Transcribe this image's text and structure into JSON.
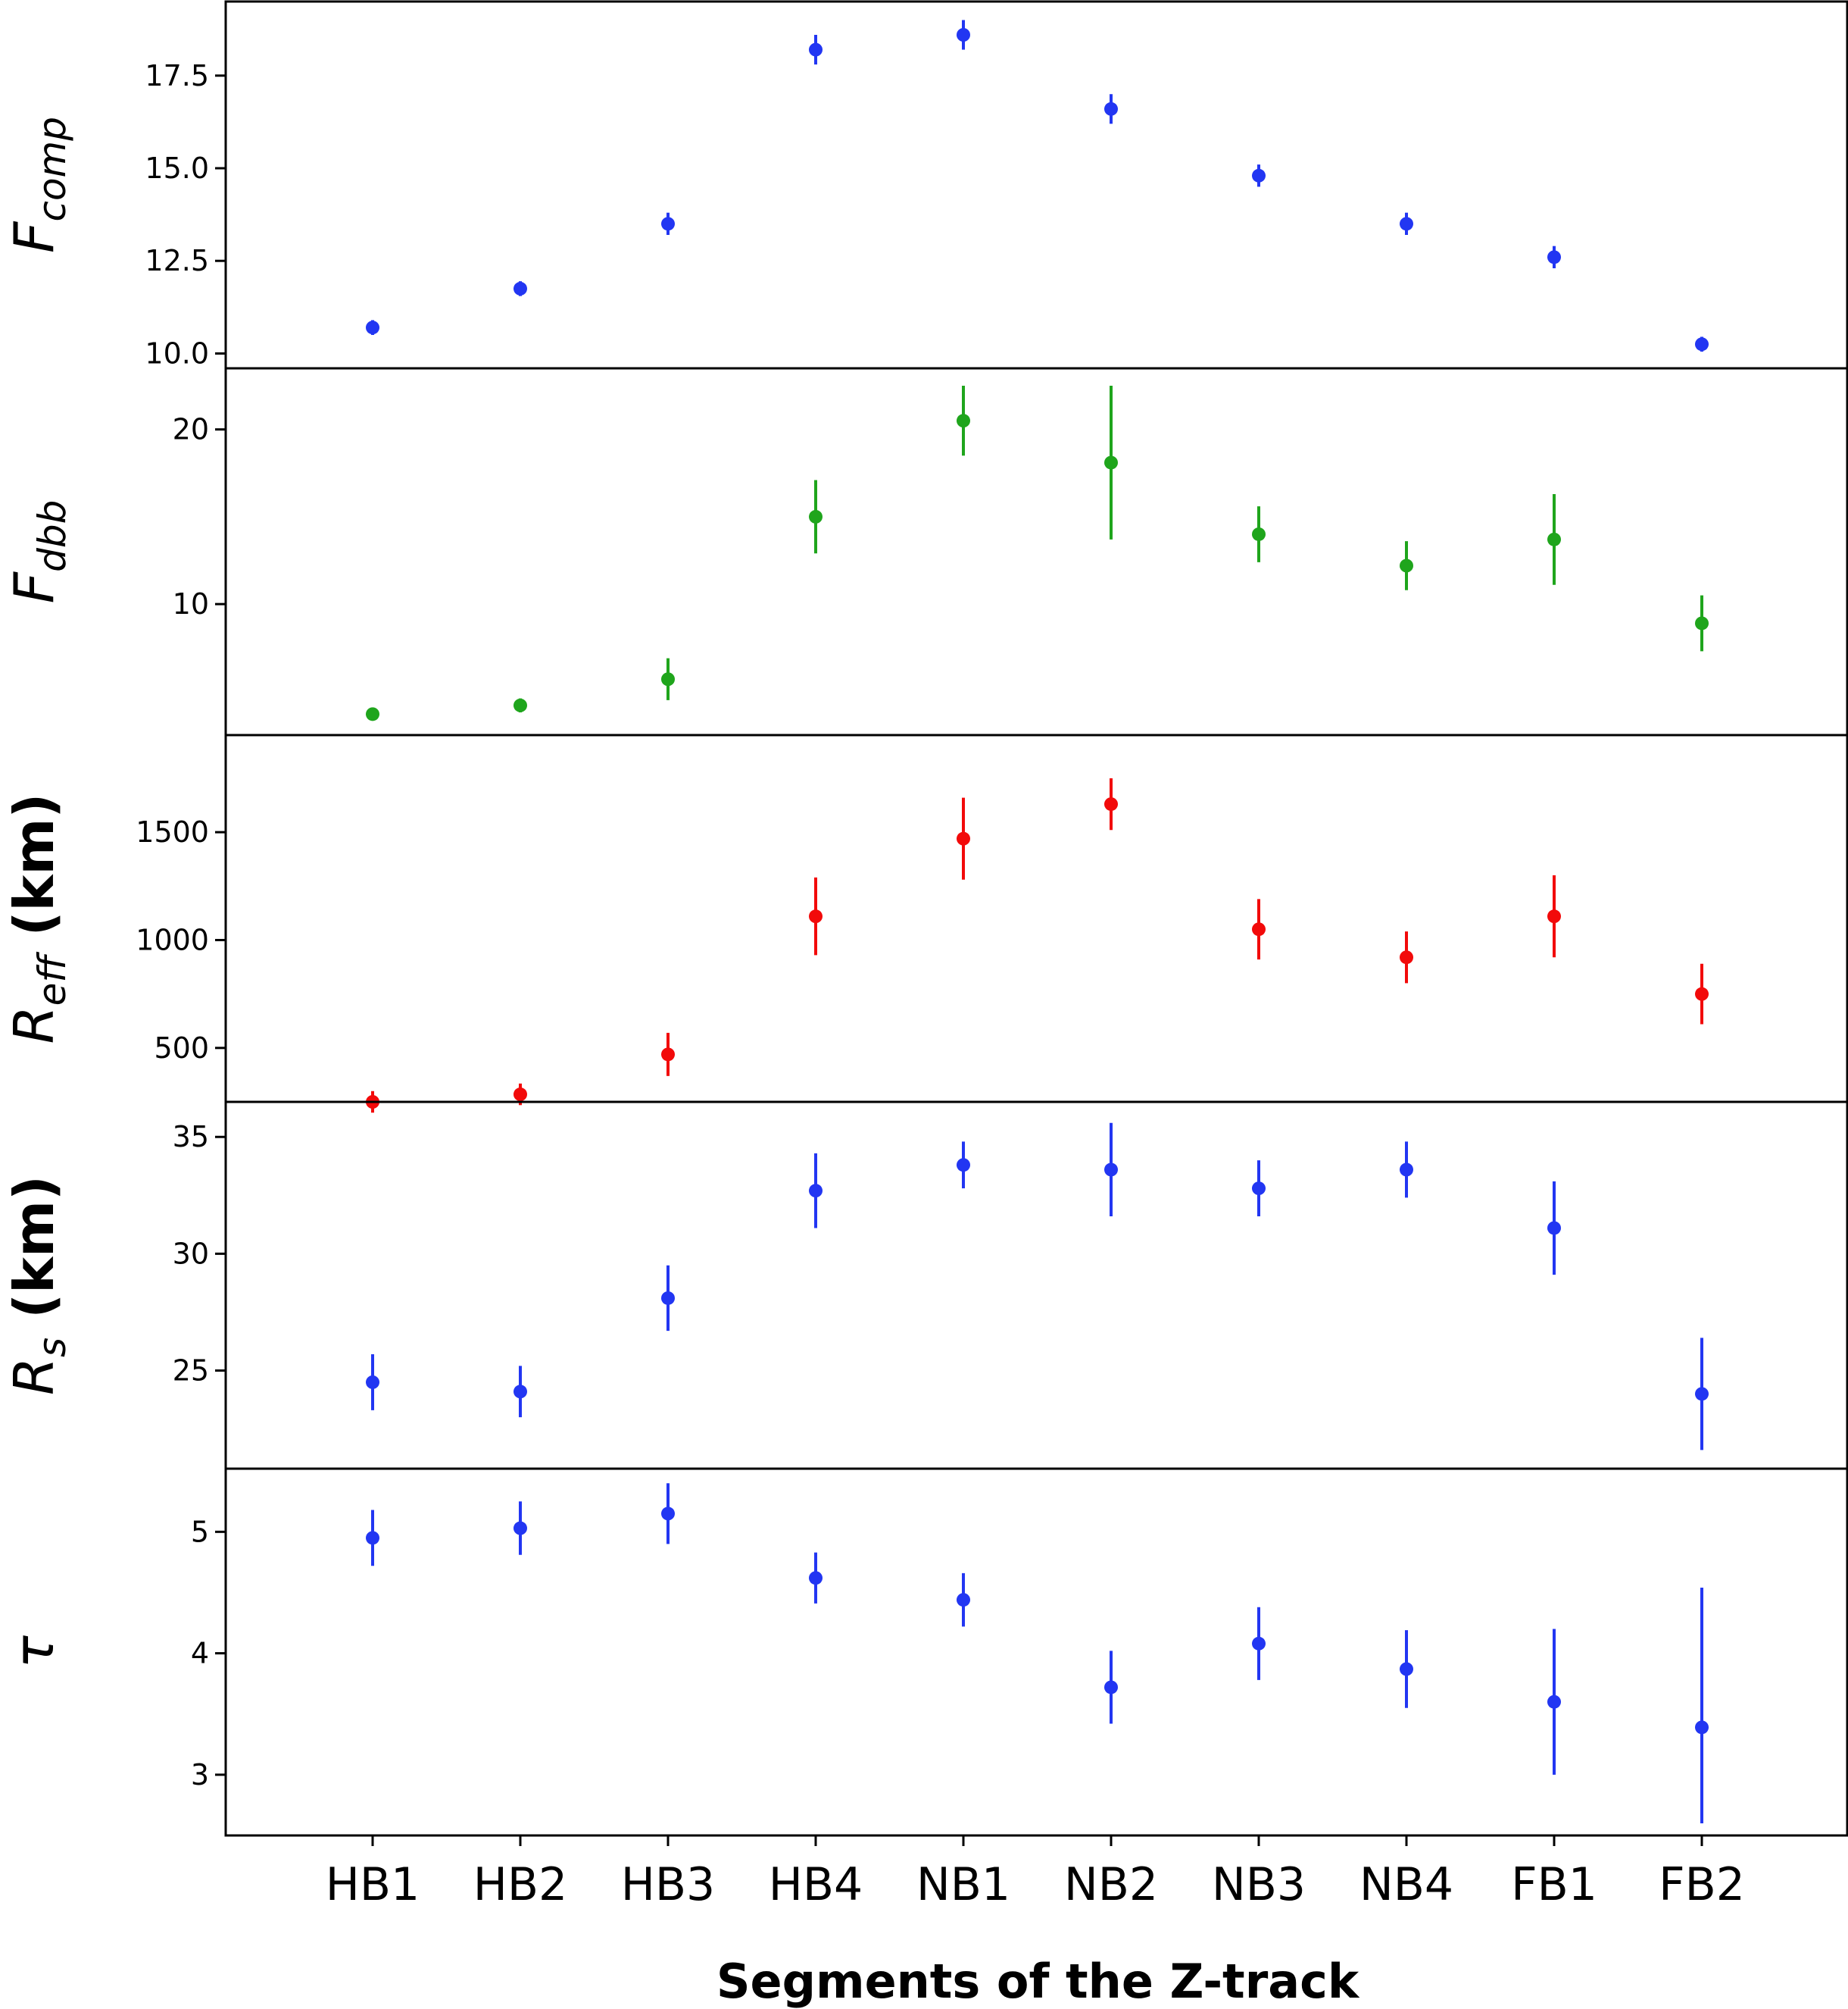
{
  "chart_data": {
    "type": "scatter",
    "categories": [
      "HB1",
      "HB2",
      "HB3",
      "HB4",
      "NB1",
      "NB2",
      "NB3",
      "NB4",
      "FB1",
      "FB2"
    ],
    "xlabel": "Segments of the Z-track",
    "panels": [
      {
        "name": "fcomp",
        "ylabel": {
          "main": "F",
          "sub": "comp",
          "unit": ""
        },
        "color": "#2236f2",
        "ylim": [
          9.6,
          19.5
        ],
        "ticks": [
          10.0,
          12.5,
          15.0,
          17.5
        ],
        "tick_labels": [
          "10.0",
          "12.5",
          "15.0",
          "17.5"
        ],
        "values": [
          10.7,
          11.75,
          13.5,
          18.2,
          18.6,
          16.6,
          14.8,
          13.5,
          12.6,
          10.25
        ],
        "err_low": [
          0.2,
          0.2,
          0.3,
          0.4,
          0.4,
          0.4,
          0.3,
          0.3,
          0.3,
          0.2
        ],
        "err_high": [
          0.2,
          0.2,
          0.3,
          0.4,
          0.4,
          0.4,
          0.3,
          0.3,
          0.3,
          0.2
        ]
      },
      {
        "name": "fdbb",
        "ylabel": {
          "main": "F",
          "sub": "dbb",
          "unit": ""
        },
        "color": "#1fa51c",
        "ylim": [
          2.5,
          23.5
        ],
        "ticks": [
          10,
          20
        ],
        "tick_labels": [
          "10",
          "20"
        ],
        "values": [
          3.7,
          4.2,
          5.7,
          15.0,
          20.5,
          18.1,
          14.0,
          12.2,
          13.7,
          8.9
        ],
        "err_low": [
          0.3,
          0.4,
          1.2,
          2.1,
          2.0,
          4.4,
          1.6,
          1.4,
          2.6,
          1.6
        ],
        "err_high": [
          0.3,
          0.4,
          1.2,
          2.1,
          2.0,
          4.4,
          1.6,
          1.4,
          2.6,
          1.6
        ]
      },
      {
        "name": "reff",
        "ylabel": {
          "main": "R",
          "sub": "eff",
          "unit": " (km)"
        },
        "color": "#f20a0a",
        "ylim": [
          250,
          1950
        ],
        "ticks": [
          500,
          1000,
          1500
        ],
        "tick_labels": [
          "500",
          "1000",
          "1500"
        ],
        "values": [
          250,
          285,
          470,
          1110,
          1470,
          1630,
          1050,
          920,
          1110,
          750
        ],
        "err_low": [
          50,
          50,
          100,
          180,
          190,
          120,
          140,
          120,
          190,
          140
        ],
        "err_high": [
          50,
          50,
          100,
          180,
          190,
          120,
          140,
          120,
          190,
          140
        ]
      },
      {
        "name": "rs",
        "ylabel": {
          "main": "R",
          "sub": "s",
          "unit": " (km)"
        },
        "color": "#2236f2",
        "ylim": [
          20.8,
          36.5
        ],
        "ticks": [
          25,
          30,
          35
        ],
        "tick_labels": [
          "25",
          "30",
          "35"
        ],
        "values": [
          24.5,
          24.1,
          28.1,
          32.7,
          33.8,
          33.6,
          32.8,
          33.6,
          31.1,
          24.0
        ],
        "err_low": [
          1.2,
          1.1,
          1.4,
          1.6,
          1.0,
          2.0,
          1.2,
          1.2,
          2.0,
          2.4
        ],
        "err_high": [
          1.2,
          1.1,
          1.4,
          1.6,
          1.0,
          2.0,
          1.2,
          1.2,
          2.0,
          2.4
        ]
      },
      {
        "name": "tau",
        "ylabel": {
          "main": "τ",
          "sub": "",
          "unit": ""
        },
        "color": "#2236f2",
        "ylim": [
          2.5,
          5.52
        ],
        "ticks": [
          3,
          4,
          5
        ],
        "tick_labels": [
          "3",
          "4",
          "5"
        ],
        "values": [
          4.95,
          5.03,
          5.15,
          4.62,
          4.44,
          3.72,
          4.08,
          3.87,
          3.6,
          3.39
        ],
        "err_low": [
          0.23,
          0.22,
          0.25,
          0.21,
          0.22,
          0.3,
          0.3,
          0.32,
          0.6,
          0.79
        ],
        "err_high": [
          0.23,
          0.22,
          0.25,
          0.21,
          0.22,
          0.3,
          0.3,
          0.32,
          0.6,
          1.15
        ]
      }
    ]
  }
}
